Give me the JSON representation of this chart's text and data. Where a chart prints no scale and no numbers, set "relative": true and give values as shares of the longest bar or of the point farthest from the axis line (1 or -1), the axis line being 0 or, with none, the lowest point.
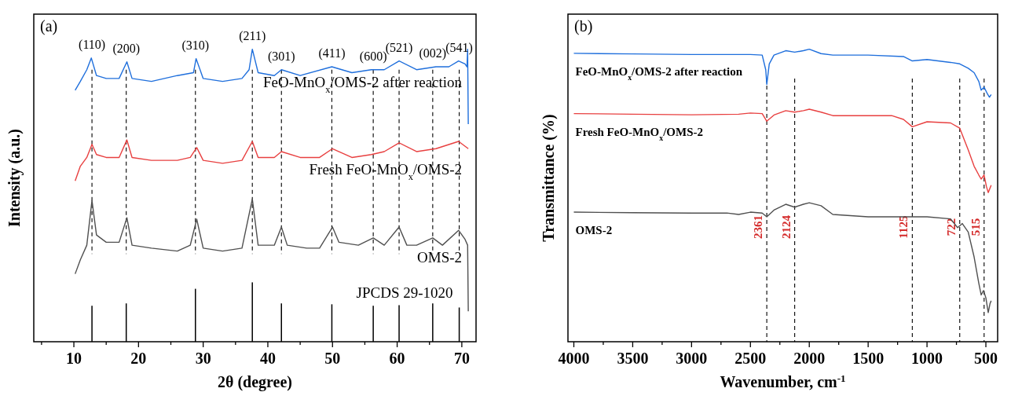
{
  "chart_data": [
    {
      "type": "line",
      "title": "(a)",
      "xlabel": "2θ (degree)",
      "ylabel": "Intensity (a.u.)",
      "relative": true,
      "legend": false,
      "grid": false,
      "line_style": "solid",
      "marker": "none",
      "xlim": [
        3.8,
        72.2
      ],
      "xticks": [
        {
          "value": 5,
          "label": null
        },
        10,
        {
          "value": 15,
          "label": null
        },
        20,
        {
          "value": 25,
          "label": null
        },
        30,
        {
          "value": 35,
          "label": null
        },
        40,
        {
          "value": 45,
          "label": null
        },
        50,
        {
          "value": 55,
          "label": null
        },
        60,
        {
          "value": 65,
          "label": null
        },
        70
      ],
      "series": [
        {
          "name": "FeO-MnO$_{x}$/OMS-2 after reaction",
          "color": "#1f6fdc",
          "x": [
            10.2,
            11,
            12,
            12.7,
            13.5,
            15,
            17,
            18.2,
            19,
            22,
            26,
            28.5,
            28.9,
            30,
            33,
            36,
            37.1,
            37.6,
            38.5,
            41,
            42.1,
            45,
            49.9,
            53,
            56,
            58,
            60.3,
            63,
            66,
            68,
            69.5,
            70.5,
            70.8,
            70.9,
            71
          ],
          "values": [
            0.86,
            0.89,
            0.93,
            0.97,
            0.91,
            0.9,
            0.9,
            0.957,
            0.9,
            0.89,
            0.91,
            0.92,
            0.968,
            0.9,
            0.89,
            0.9,
            0.93,
            1.0,
            0.92,
            0.91,
            0.93,
            0.91,
            0.94,
            0.92,
            0.93,
            0.93,
            0.96,
            0.93,
            0.94,
            0.94,
            0.96,
            0.95,
            0.94,
            1.0,
            0.744
          ]
        },
        {
          "name": "Fresh FeO-MnO$_{x}$/OMS-2",
          "color": "#e84040",
          "x": [
            10.2,
            11,
            12,
            12.8,
            13.5,
            15,
            17,
            18.2,
            19,
            22,
            26,
            28,
            29,
            30,
            33,
            36,
            37.6,
            38.5,
            41,
            42.1,
            45,
            48,
            50,
            53,
            56,
            58,
            60.3,
            63,
            66,
            69.5,
            71
          ],
          "values": [
            0.55,
            0.6,
            0.63,
            0.675,
            0.64,
            0.63,
            0.63,
            0.69,
            0.63,
            0.62,
            0.62,
            0.63,
            0.664,
            0.62,
            0.61,
            0.62,
            0.685,
            0.63,
            0.63,
            0.65,
            0.63,
            0.63,
            0.66,
            0.63,
            0.64,
            0.65,
            0.68,
            0.65,
            0.66,
            0.685,
            0.66
          ]
        },
        {
          "name": "OMS-2",
          "color": "#505050",
          "x": [
            10.2,
            11,
            12,
            12.8,
            13.5,
            15,
            17,
            18.2,
            19,
            22,
            26,
            28,
            29,
            30,
            33,
            36,
            37.6,
            38.5,
            41,
            42.1,
            43,
            46,
            48,
            50,
            51,
            54,
            56.3,
            58,
            60.3,
            61.5,
            63,
            65.5,
            67,
            69.5,
            70.5,
            70.9,
            71
          ],
          "values": [
            0.232,
            0.28,
            0.33,
            0.483,
            0.365,
            0.34,
            0.34,
            0.424,
            0.33,
            0.32,
            0.31,
            0.33,
            0.419,
            0.32,
            0.31,
            0.32,
            0.488,
            0.33,
            0.33,
            0.392,
            0.33,
            0.32,
            0.32,
            0.392,
            0.34,
            0.33,
            0.355,
            0.33,
            0.392,
            0.33,
            0.33,
            0.355,
            0.33,
            0.381,
            0.35,
            0.33,
            0.104
          ]
        },
        {
          "name": "JPCDS 29-1020",
          "type": "bar",
          "color": "#000000",
          "x": [
            12.8,
            18.1,
            28.8,
            37.6,
            42.1,
            49.9,
            56.3,
            60.3,
            65.5,
            69.6
          ],
          "values": [
            0.123,
            0.131,
            0.181,
            0.203,
            0.131,
            0.128,
            0.123,
            0.125,
            0.131,
            0.117
          ]
        }
      ],
      "ref_lines": [
        {
          "axis": "x",
          "value": 12.8,
          "line_style": "dashed"
        },
        {
          "axis": "x",
          "value": 18.1,
          "line_style": "dashed"
        },
        {
          "axis": "x",
          "value": 28.8,
          "line_style": "dashed"
        },
        {
          "axis": "x",
          "value": 37.6,
          "line_style": "dashed"
        },
        {
          "axis": "x",
          "value": 42.1,
          "line_style": "dashed"
        },
        {
          "axis": "x",
          "value": 49.9,
          "line_style": "dashed"
        },
        {
          "axis": "x",
          "value": 56.3,
          "line_style": "dashed"
        },
        {
          "axis": "x",
          "value": 60.3,
          "line_style": "dashed"
        },
        {
          "axis": "x",
          "value": 65.5,
          "line_style": "dashed"
        },
        {
          "axis": "x",
          "value": 69.6,
          "line_style": "dashed"
        }
      ],
      "annotations": [
        {
          "text": "(110)",
          "x": 12.8,
          "y": 0.97
        },
        {
          "text": "(200)",
          "x": 18.1,
          "y": 0.957
        },
        {
          "text": "(310)",
          "x": 28.8,
          "y": 0.968
        },
        {
          "text": "(211)",
          "x": 37.6,
          "y": 1.0
        },
        {
          "text": "(301)",
          "x": 42.1,
          "y": 0.93
        },
        {
          "text": "(411)",
          "x": 49.9,
          "y": 0.94
        },
        {
          "text": "(600)",
          "x": 56.3,
          "y": 0.93
        },
        {
          "text": "(521)",
          "x": 60.3,
          "y": 0.96
        },
        {
          "text": "(002)",
          "x": 65.5,
          "y": 0.94
        },
        {
          "text": "(541)",
          "x": 69.6,
          "y": 0.96
        }
      ]
    },
    {
      "type": "line",
      "title": "(b)",
      "xlabel": "Wavenumber, cm$^{-1}$",
      "ylabel": "Transmittance (%)",
      "relative": true,
      "legend": false,
      "grid": false,
      "line_style": "solid",
      "marker": "none",
      "xlim": [
        4050,
        400
      ],
      "xticks": [
        4000,
        {
          "value": 3750,
          "label": null
        },
        3500,
        {
          "value": 3250,
          "label": null
        },
        3000,
        {
          "value": 2750,
          "label": null
        },
        2500,
        {
          "value": 2250,
          "label": null
        },
        2000,
        {
          "value": 1750,
          "label": null
        },
        1500,
        {
          "value": 1250,
          "label": null
        },
        1000,
        {
          "value": 750,
          "label": null
        },
        500
      ],
      "series": [
        {
          "name": "FeO-MnO$_{x}$/OMS-2 after reaction",
          "color": "#1f6fdc",
          "x": [
            4000,
            3500,
            3000,
            2500,
            2400,
            2370,
            2361,
            2340,
            2300,
            2200,
            2124,
            2050,
            2000,
            1900,
            1800,
            1500,
            1200,
            1125,
            1000,
            800,
            722,
            650,
            600,
            560,
            540,
            515,
            490,
            470,
            455
          ],
          "values": [
            0.986,
            0.984,
            0.982,
            0.982,
            0.98,
            0.93,
            0.88,
            0.95,
            0.98,
            0.995,
            0.99,
            0.995,
            1.0,
            0.985,
            0.98,
            0.98,
            0.975,
            0.96,
            0.965,
            0.955,
            0.95,
            0.935,
            0.92,
            0.89,
            0.86,
            0.87,
            0.85,
            0.836,
            0.845
          ]
        },
        {
          "name": "Fresh FeO-MnO$_{x}$/OMS-2",
          "color": "#e84040",
          "x": [
            4000,
            3500,
            3000,
            2600,
            2500,
            2400,
            2361,
            2300,
            2200,
            2124,
            2050,
            2000,
            1900,
            1800,
            1500,
            1300,
            1200,
            1125,
            1000,
            800,
            722,
            650,
            600,
            560,
            540,
            515,
            495,
            480,
            455
          ],
          "values": [
            0.78,
            0.778,
            0.776,
            0.778,
            0.782,
            0.78,
            0.754,
            0.775,
            0.79,
            0.785,
            0.79,
            0.795,
            0.785,
            0.773,
            0.773,
            0.773,
            0.76,
            0.735,
            0.752,
            0.748,
            0.73,
            0.656,
            0.6,
            0.57,
            0.556,
            0.57,
            0.53,
            0.51,
            0.535
          ]
        },
        {
          "name": "OMS-2",
          "color": "#505050",
          "x": [
            4000,
            3500,
            3000,
            2700,
            2600,
            2500,
            2400,
            2361,
            2300,
            2200,
            2124,
            2050,
            2000,
            1900,
            1800,
            1500,
            1000,
            800,
            740,
            700,
            650,
            600,
            560,
            540,
            520,
            500,
            480,
            465,
            455
          ],
          "values": [
            0.443,
            0.441,
            0.44,
            0.44,
            0.435,
            0.443,
            0.44,
            0.427,
            0.45,
            0.47,
            0.46,
            0.47,
            0.475,
            0.465,
            0.435,
            0.427,
            0.427,
            0.42,
            0.39,
            0.404,
            0.375,
            0.29,
            0.2,
            0.16,
            0.175,
            0.15,
            0.1,
            0.13,
            0.14
          ]
        }
      ],
      "ref_lines": [
        {
          "axis": "x",
          "value": 2361,
          "label": "2361",
          "line_style": "dashed"
        },
        {
          "axis": "x",
          "value": 2124,
          "label": "2124",
          "line_style": "dashed"
        },
        {
          "axis": "x",
          "value": 1125,
          "label": "1125",
          "line_style": "dashed"
        },
        {
          "axis": "x",
          "value": 722,
          "label": "722",
          "line_style": "dashed"
        },
        {
          "axis": "x",
          "value": 515,
          "label": "515",
          "line_style": "dashed"
        }
      ]
    }
  ]
}
